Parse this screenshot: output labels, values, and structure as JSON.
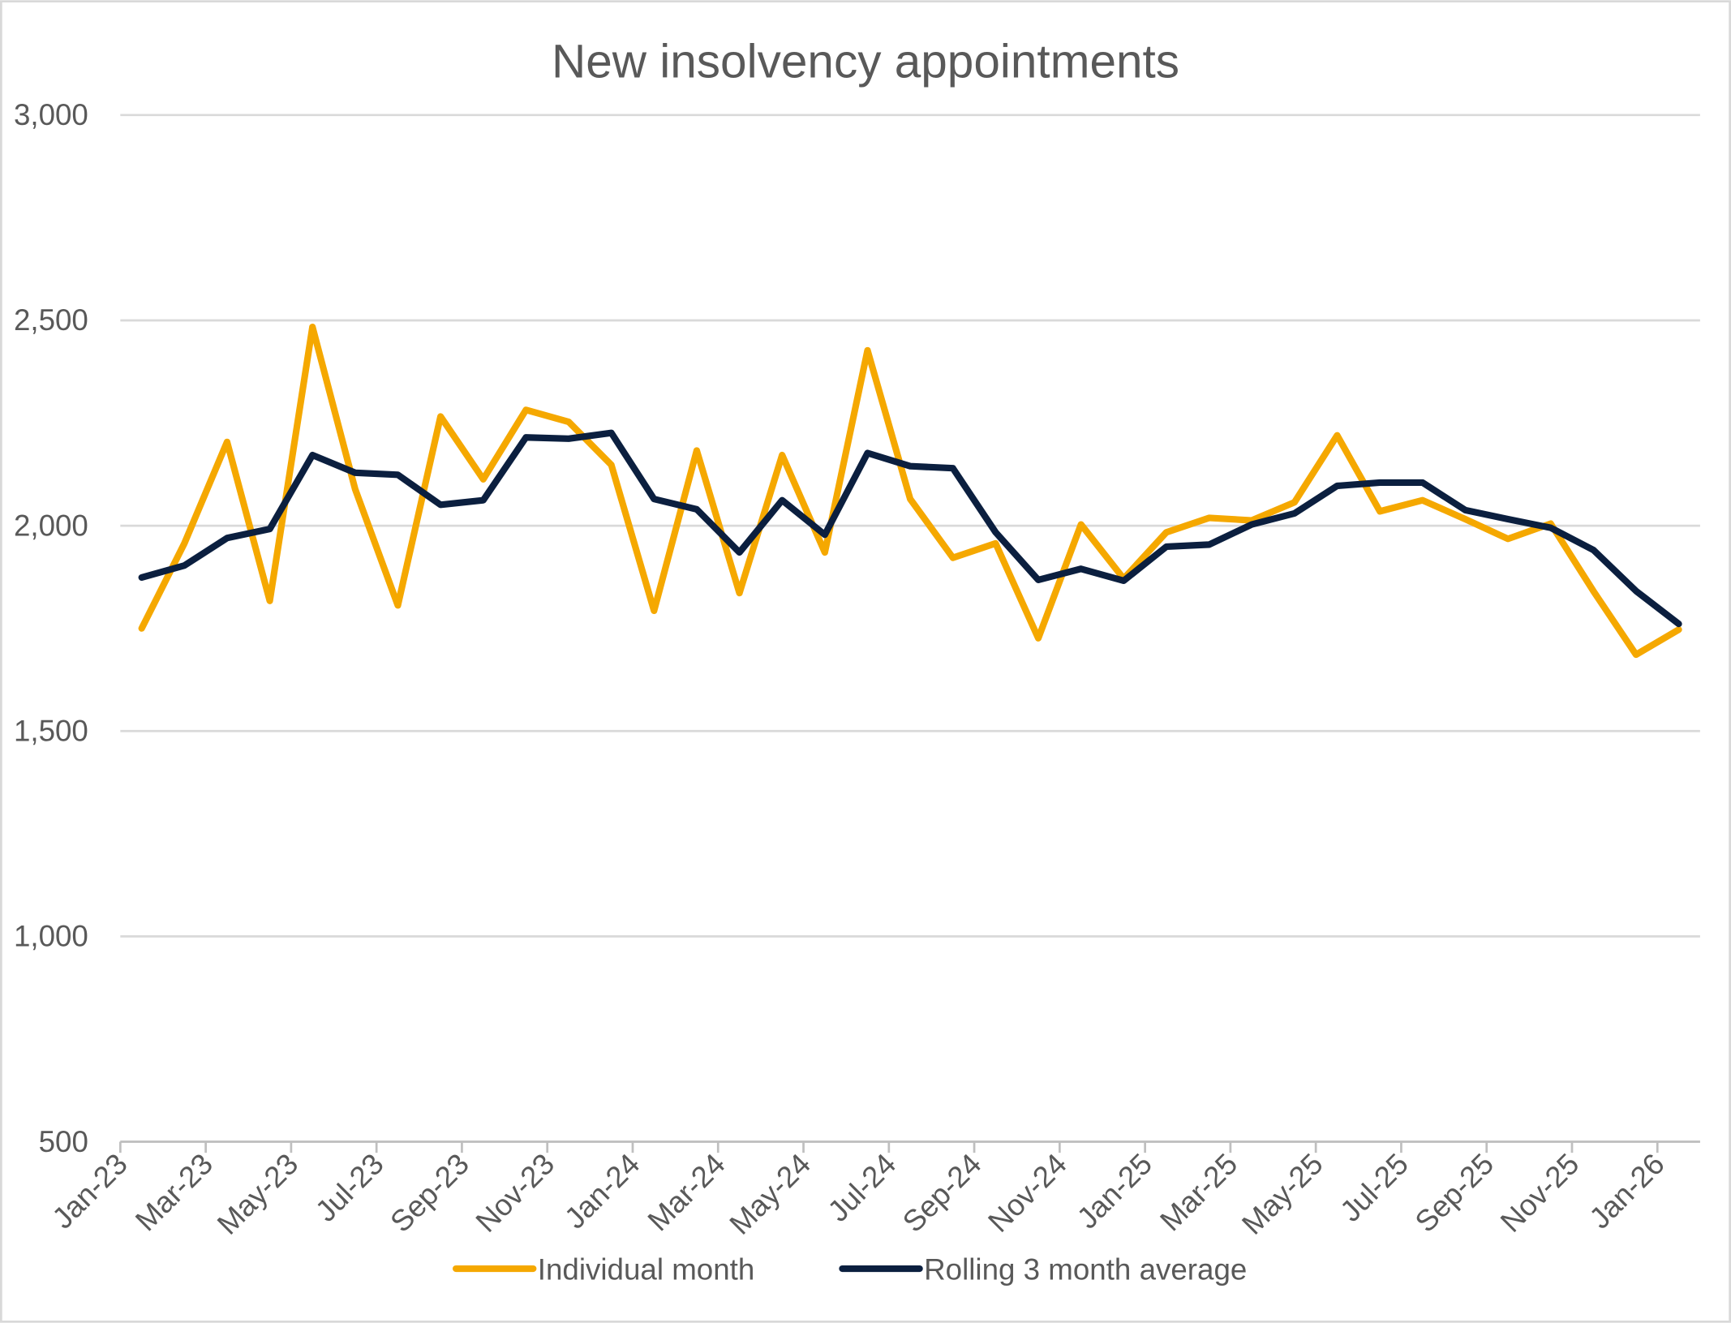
{
  "chart_data": {
    "type": "line",
    "title": "New insolvency appointments",
    "xlabel": "",
    "ylabel": "",
    "ylim": [
      500,
      3000
    ],
    "yticks": [
      "500",
      "1,000",
      "1,500",
      "2,000",
      "2,500",
      "3,000"
    ],
    "ytick_values": [
      500,
      1000,
      1500,
      2000,
      2500,
      3000
    ],
    "grid": true,
    "legend_position": "bottom",
    "categories": [
      "Jan-23",
      "Feb-23",
      "Mar-23",
      "Apr-23",
      "May-23",
      "Jun-23",
      "Jul-23",
      "Aug-23",
      "Sep-23",
      "Oct-23",
      "Nov-23",
      "Dec-23",
      "Jan-24",
      "Feb-24",
      "Mar-24",
      "Apr-24",
      "May-24",
      "Jun-24",
      "Jul-24",
      "Aug-24",
      "Sep-24",
      "Oct-24",
      "Nov-24",
      "Dec-24",
      "Jan-25",
      "Feb-25",
      "Mar-25",
      "Apr-25",
      "May-25",
      "Jun-25",
      "Jul-25",
      "Aug-25",
      "Sep-25",
      "Oct-25",
      "Nov-25",
      "Dec-25",
      "Jan-26"
    ],
    "xtick_labels": [
      "Jan-23",
      "Mar-23",
      "May-23",
      "Jul-23",
      "Sep-23",
      "Nov-23",
      "Jan-24",
      "Mar-24",
      "May-24",
      "Jul-24",
      "Sep-24",
      "Nov-24",
      "Jan-25",
      "Mar-25",
      "May-25",
      "Jul-25",
      "Sep-25",
      "Nov-25",
      "Jan-26"
    ],
    "series": [
      {
        "name": "Individual month",
        "color": "#F5A800",
        "values": [
          1750,
          1957,
          2204,
          1817,
          2484,
          2089,
          1806,
          2266,
          2113,
          2282,
          2253,
          2148,
          1793,
          2183,
          1836,
          2172,
          1935,
          2427,
          2065,
          1922,
          1957,
          1726,
          2003,
          1871,
          1984,
          2019,
          2013,
          2057,
          2220,
          2035,
          2062,
          2016,
          1968,
          2005,
          1841,
          1686,
          1747
        ]
      },
      {
        "name": "Rolling 3 month average",
        "color": "#0B1F3F",
        "values": [
          1874,
          1903,
          1970,
          1992,
          2172,
          2129,
          2124,
          2051,
          2062,
          2215,
          2212,
          2226,
          2065,
          2040,
          1935,
          2062,
          1978,
          2177,
          2145,
          2140,
          1984,
          1868,
          1895,
          1866,
          1949,
          1954,
          2003,
          2030,
          2097,
          2105,
          2105,
          2038,
          2016,
          1995,
          1941,
          1841,
          1761
        ]
      }
    ]
  }
}
